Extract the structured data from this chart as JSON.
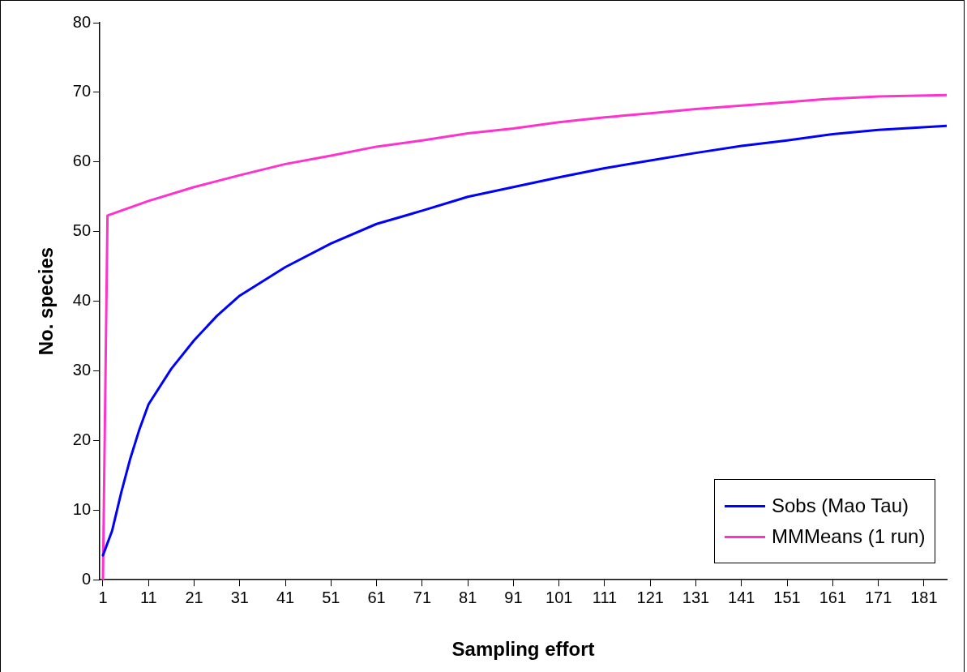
{
  "chart_data": {
    "type": "line",
    "xlabel": "Sampling effort",
    "ylabel": "No. species",
    "xlim": [
      0.3,
      186
    ],
    "xticks": [
      1,
      11,
      21,
      31,
      41,
      51,
      61,
      71,
      81,
      91,
      101,
      111,
      121,
      131,
      141,
      151,
      161,
      171,
      181
    ],
    "ylim": [
      0,
      80
    ],
    "yticks": [
      0,
      10,
      20,
      30,
      40,
      50,
      60,
      70,
      80
    ],
    "grid": false,
    "legend": "bottom right",
    "marker": "none",
    "line_style": "solid",
    "series": [
      {
        "name": "Sobs (Mao Tau)",
        "color": "#0000ff",
        "x": [
          1,
          3,
          5,
          7,
          9,
          11,
          16,
          21,
          26,
          31,
          41,
          51,
          61,
          71,
          81,
          91,
          101,
          111,
          121,
          131,
          141,
          151,
          161,
          171,
          186
        ],
        "values": [
          3.5,
          7,
          12.5,
          17.4,
          21.6,
          25.2,
          30.3,
          34.4,
          37.9,
          40.8,
          44.9,
          48.3,
          51.1,
          53,
          55,
          56.4,
          57.8,
          59.1,
          60.2,
          61.3,
          62.3,
          63.1,
          64,
          64.6,
          65.2
        ]
      },
      {
        "name": "MMMeans (1 run)",
        "color": "#ff33cc",
        "x": [
          1,
          2,
          11,
          21,
          31,
          41,
          51,
          61,
          71,
          81,
          91,
          101,
          111,
          121,
          131,
          141,
          151,
          161,
          171,
          186
        ],
        "values": [
          0,
          52.3,
          54.4,
          56.4,
          58.1,
          59.7,
          60.9,
          62.2,
          63.1,
          64.1,
          64.8,
          65.7,
          66.4,
          67,
          67.6,
          68.1,
          68.6,
          69.1,
          69.4,
          69.6
        ]
      }
    ]
  }
}
